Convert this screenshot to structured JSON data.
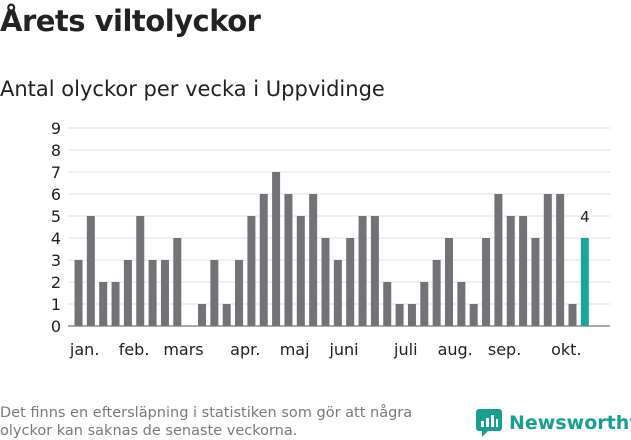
{
  "header": {
    "title": "Årets viltolyckor",
    "subtitle": "Antal olyckor per vecka i Uppvidinge"
  },
  "footer": {
    "note": "Det finns en eftersläpning i statistiken som gör att några olyckor kan saknas de senaste veckorna.",
    "brand": "Newsworthy"
  },
  "colors": {
    "bar": "#737276",
    "highlight": "#19a698",
    "grid": "#e0e0e0",
    "text": "#222222",
    "brand": "#17a08f"
  },
  "chart_data": {
    "type": "bar",
    "x": [
      1,
      2,
      3,
      4,
      5,
      6,
      7,
      8,
      9,
      10,
      11,
      12,
      13,
      14,
      15,
      16,
      17,
      18,
      19,
      20,
      21,
      22,
      23,
      24,
      25,
      26,
      27,
      28,
      29,
      30,
      31,
      32,
      33,
      34,
      35,
      36,
      37,
      38,
      39,
      40,
      41,
      42
    ],
    "values": [
      3,
      5,
      2,
      2,
      3,
      5,
      3,
      3,
      4,
      0,
      1,
      3,
      1,
      3,
      5,
      6,
      7,
      6,
      5,
      6,
      4,
      3,
      4,
      5,
      5,
      2,
      1,
      1,
      2,
      3,
      4,
      2,
      1,
      4,
      6,
      5,
      5,
      4,
      6,
      6,
      1,
      4
    ],
    "yticks": [
      0,
      1,
      2,
      3,
      4,
      5,
      6,
      7,
      8,
      9
    ],
    "ylim": [
      0,
      9
    ],
    "month_labels": [
      {
        "label": "jan.",
        "at": 1.5
      },
      {
        "label": "feb.",
        "at": 5.5
      },
      {
        "label": "mars",
        "at": 9.5
      },
      {
        "label": "apr.",
        "at": 14.5
      },
      {
        "label": "maj",
        "at": 18.5
      },
      {
        "label": "juni",
        "at": 22.5
      },
      {
        "label": "juli",
        "at": 27.5
      },
      {
        "label": "aug.",
        "at": 31.5
      },
      {
        "label": "sep.",
        "at": 35.5
      },
      {
        "label": "okt.",
        "at": 40.5
      }
    ],
    "highlight_index": 41,
    "highlight_label": "4",
    "grid": true,
    "title": "Årets viltolyckor",
    "subtitle": "Antal olyckor per vecka i Uppvidinge",
    "xlabel": "",
    "ylabel": ""
  }
}
